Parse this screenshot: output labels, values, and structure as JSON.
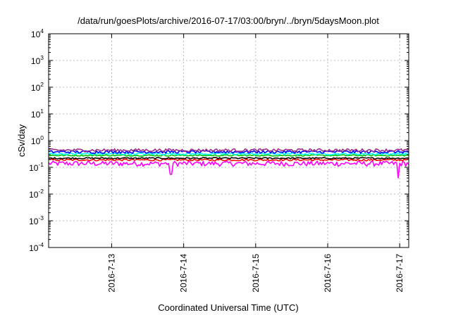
{
  "chart_data": {
    "type": "line",
    "title": "/data/run/goesPlots/archive/2016-07-17/03:00/bryn/../bryn/5daysMoon.plot",
    "xlabel": "Coordinated Universal Time (UTC)",
    "ylabel": "cSv/day",
    "y_scale": "log",
    "ylim": [
      0.0001,
      10000
    ],
    "y_ticks": [
      {
        "base": "10",
        "exp": "-4",
        "value": 0.0001
      },
      {
        "base": "10",
        "exp": "-3",
        "value": 0.001
      },
      {
        "base": "10",
        "exp": "-2",
        "value": 0.01
      },
      {
        "base": "10",
        "exp": "-1",
        "value": 0.1
      },
      {
        "base": "10",
        "exp": "0",
        "value": 1
      },
      {
        "base": "10",
        "exp": "1",
        "value": 10
      },
      {
        "base": "10",
        "exp": "2",
        "value": 100
      },
      {
        "base": "10",
        "exp": "3",
        "value": 1000
      },
      {
        "base": "10",
        "exp": "4",
        "value": 10000
      }
    ],
    "xlim": [
      "2016-07-12 03:00",
      "2016-07-17 03:00"
    ],
    "x_ticks": [
      "2016-7-13",
      "2016-7-14",
      "2016-7-15",
      "2016-7-16",
      "2016-7-17"
    ],
    "grid": true,
    "legend": "none",
    "series": [
      {
        "color": "#ff00ff",
        "level": 0.14,
        "noise": 0.22,
        "dips": [
          [
            0.34,
            0.055
          ],
          [
            0.97,
            0.04
          ]
        ]
      },
      {
        "color": "#ff0000",
        "level": 0.19,
        "noise": 0.08,
        "dips": []
      },
      {
        "color": "#000000",
        "level": 0.22,
        "noise": 0.06,
        "dips": []
      },
      {
        "color": "#00c000",
        "level": 0.28,
        "noise": 0.06,
        "dips": []
      },
      {
        "color": "#00ffff",
        "level": 0.32,
        "noise": 0.08,
        "dips": []
      },
      {
        "color": "#0000ff",
        "level": 0.38,
        "noise": 0.12,
        "dips": []
      },
      {
        "color": "#a0308c",
        "level": 0.44,
        "noise": 0.13,
        "dips": []
      }
    ]
  }
}
